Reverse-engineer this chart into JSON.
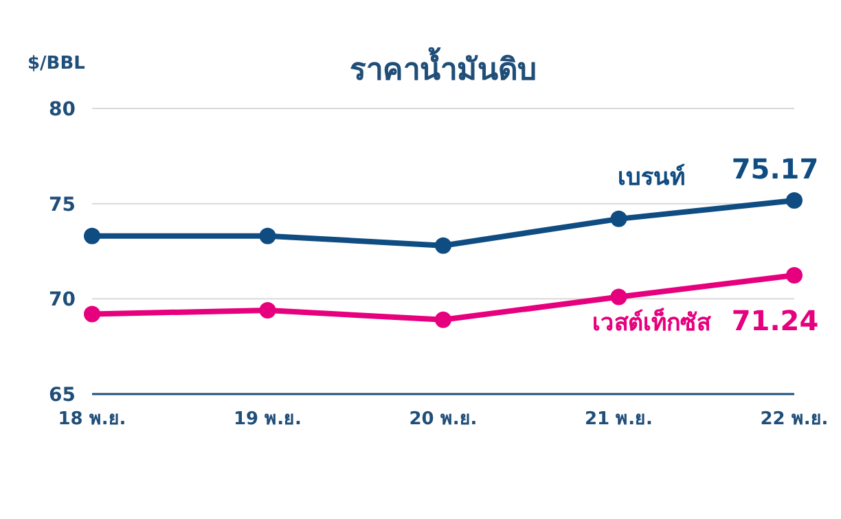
{
  "chart_data": {
    "type": "line",
    "title": "ราคาน้ำมันดิบ",
    "ylabel": "$/BBL",
    "categories": [
      "18 พ.ย.",
      "19 พ.ย.",
      "20 พ.ย.",
      "21 พ.ย.",
      "22 พ.ย."
    ],
    "series": [
      {
        "name": "เบรนท์",
        "color": "#0f4c81",
        "values": [
          73.3,
          73.3,
          72.8,
          74.2,
          75.17
        ],
        "value_labels": [
          null,
          null,
          null,
          null,
          "75.17"
        ]
      },
      {
        "name": "เวสต์เท็กซัส",
        "color": "#e6007e",
        "values": [
          69.2,
          69.4,
          68.9,
          70.1,
          71.24
        ],
        "value_labels": [
          null,
          null,
          null,
          null,
          "71.24"
        ]
      }
    ],
    "ylim": [
      65,
      80
    ],
    "yticks": [
      65,
      70,
      75,
      80
    ],
    "grid": "y",
    "legend": false,
    "marker": "circle",
    "line_style": "solid"
  }
}
